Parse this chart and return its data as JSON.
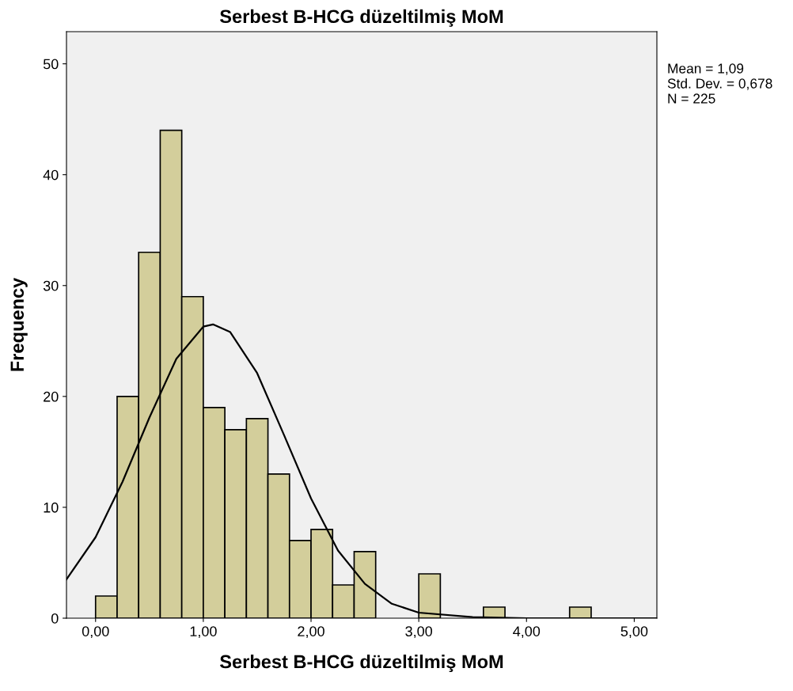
{
  "chart_data": {
    "type": "histogram",
    "title": "Serbest B-HCG düzeltilmiş MoM",
    "xlabel": "Serbest B-HCG düzeltilmiş MoM",
    "ylabel": "Frequency",
    "series": [
      {
        "color": "#d3ce9b",
        "bins": [
          0,
          0.2,
          0.4,
          0.6,
          0.8,
          1.0,
          1.2,
          1.4,
          1.6,
          1.8,
          2.0,
          2.2,
          2.4,
          2.6,
          2.8,
          3.0,
          3.2,
          3.4,
          3.6,
          3.8,
          4.0,
          4.2,
          4.4,
          4.6
        ],
        "values": [
          2,
          20,
          33,
          44,
          29,
          19,
          17,
          18,
          13,
          7,
          8,
          3,
          6,
          0,
          0,
          4,
          0,
          0,
          1,
          0,
          0,
          0,
          1
        ]
      },
      {
        "type": "line",
        "color": "#000000",
        "x": [
          -0.27,
          0,
          0.25,
          0.5,
          0.75,
          1.0,
          1.09,
          1.25,
          1.5,
          1.75,
          2.0,
          2.25,
          2.5,
          2.75,
          3.0,
          3.5,
          4.0,
          5.21
        ],
        "values": [
          3.5,
          7.3,
          12.3,
          18.1,
          23.4,
          26.3,
          26.5,
          25.8,
          22.1,
          16.5,
          10.8,
          6.1,
          3.1,
          1.3,
          0.5,
          0.1,
          0,
          0
        ]
      }
    ],
    "xlim": [
      -0.27,
      5.21
    ],
    "ylim": [
      0,
      52.9
    ],
    "xticks": [
      {
        "value": 0,
        "label": "0,00"
      },
      {
        "value": 1,
        "label": "1,00"
      },
      {
        "value": 2,
        "label": "2,00"
      },
      {
        "value": 3,
        "label": "3,00"
      },
      {
        "value": 4,
        "label": "4,00"
      },
      {
        "value": 5,
        "label": "5,00"
      }
    ],
    "yticks": [
      0,
      10,
      20,
      30,
      40,
      50
    ],
    "annotations": [
      "Mean = 1,09",
      "Std. Dev. = 0,678",
      "N = 225"
    ],
    "grid": false,
    "marker": "none",
    "line_style": "solid"
  }
}
